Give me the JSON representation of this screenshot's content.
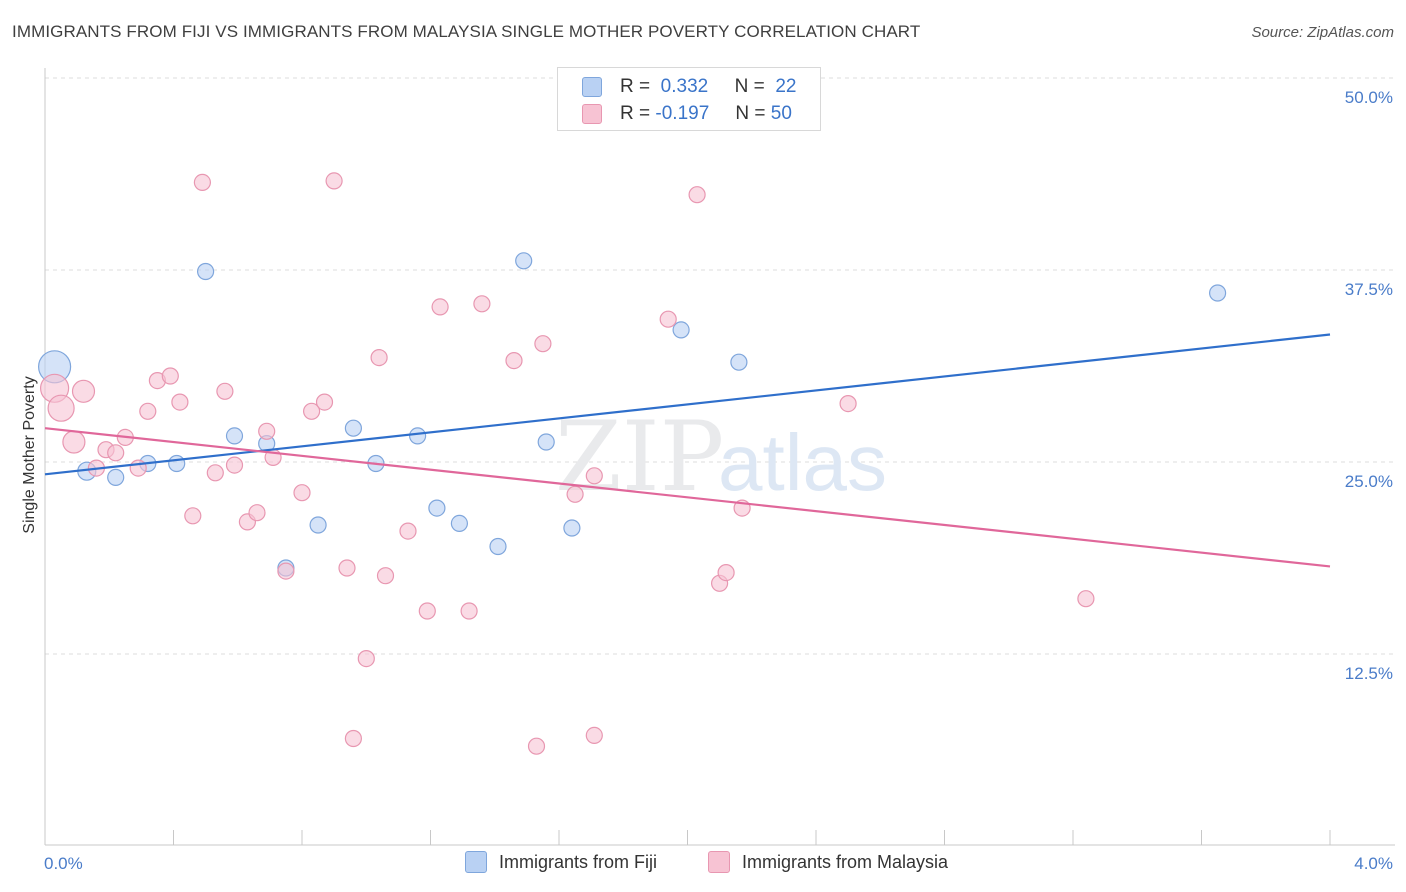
{
  "header": {
    "title": "IMMIGRANTS FROM FIJI VS IMMIGRANTS FROM MALAYSIA SINGLE MOTHER POVERTY CORRELATION CHART",
    "source": "Source: ZipAtlas.com"
  },
  "legend": {
    "fiji": {
      "r_label": "R =",
      "r_value": "0.332",
      "n_label": "N =",
      "n_value": "22"
    },
    "malaysia": {
      "r_label": "R =",
      "r_value": "-0.197",
      "n_label": "N =",
      "n_value": "50"
    }
  },
  "bottom_legend": {
    "fiji": "Immigrants from Fiji",
    "malaysia": "Immigrants from Malaysia"
  },
  "watermark": {
    "zip": "ZIP",
    "atlas": "atlas"
  },
  "colors": {
    "fiji_fill": "#b9d1f3",
    "fiji_stroke": "#7fa6dc",
    "fiji_line": "#2f6fcb",
    "malaysia_fill": "#f7c3d3",
    "malaysia_stroke": "#e897b1",
    "malaysia_line": "#e0679a",
    "tick_text": "#4a7cc9",
    "grid": "#dddddd"
  },
  "chart_data": {
    "type": "scatter",
    "title": "IMMIGRANTS FROM FIJI VS IMMIGRANTS FROM MALAYSIA SINGLE MOTHER POVERTY CORRELATION CHART",
    "ylabel": "Single Mother Poverty",
    "xlim": [
      0,
      4.0
    ],
    "ylim": [
      2.5,
      52
    ],
    "x_tick_labels": [
      "0.0%",
      "4.0%"
    ],
    "y_ticks": [
      12.5,
      25.0,
      37.5,
      50.0
    ],
    "y_tick_labels": [
      "12.5%",
      "25.0%",
      "37.5%",
      "50.0%"
    ],
    "grid": "horizontal dashed",
    "legend_position": "top-center",
    "series": [
      {
        "name": "Immigrants from Fiji",
        "r": 0.332,
        "n": 22,
        "trend": [
          [
            0.0,
            24.2
          ],
          [
            4.0,
            33.3
          ]
        ],
        "points": [
          [
            0.03,
            31.2,
            16
          ],
          [
            0.13,
            24.4,
            9
          ],
          [
            0.22,
            24.0,
            8
          ],
          [
            0.32,
            24.9,
            8
          ],
          [
            0.41,
            24.9,
            8
          ],
          [
            0.5,
            37.4,
            8
          ],
          [
            0.59,
            26.7,
            8
          ],
          [
            0.69,
            26.2,
            8
          ],
          [
            0.75,
            18.1,
            8
          ],
          [
            0.85,
            20.9,
            8
          ],
          [
            0.96,
            27.2,
            8
          ],
          [
            1.03,
            24.9,
            8
          ],
          [
            1.16,
            26.7,
            8
          ],
          [
            1.22,
            22.0,
            8
          ],
          [
            1.29,
            21.0,
            8
          ],
          [
            1.41,
            19.5,
            8
          ],
          [
            1.49,
            38.1,
            8
          ],
          [
            1.56,
            26.3,
            8
          ],
          [
            1.64,
            20.7,
            8
          ],
          [
            1.98,
            33.6,
            8
          ],
          [
            2.16,
            31.5,
            8
          ],
          [
            3.65,
            36.0,
            8
          ]
        ]
      },
      {
        "name": "Immigrants from Malaysia",
        "r": -0.197,
        "n": 50,
        "trend": [
          [
            0.0,
            27.2
          ],
          [
            4.0,
            18.2
          ]
        ],
        "points": [
          [
            0.03,
            29.8,
            14
          ],
          [
            0.05,
            28.5,
            13
          ],
          [
            0.09,
            26.3,
            11
          ],
          [
            0.12,
            29.6,
            11
          ],
          [
            0.16,
            24.6,
            8
          ],
          [
            0.19,
            25.8,
            8
          ],
          [
            0.22,
            25.6,
            8
          ],
          [
            0.25,
            26.6,
            8
          ],
          [
            0.29,
            24.6,
            8
          ],
          [
            0.32,
            28.3,
            8
          ],
          [
            0.35,
            30.3,
            8
          ],
          [
            0.39,
            30.6,
            8
          ],
          [
            0.42,
            28.9,
            8
          ],
          [
            0.46,
            21.5,
            8
          ],
          [
            0.49,
            43.2,
            8
          ],
          [
            0.53,
            24.3,
            8
          ],
          [
            0.56,
            29.6,
            8
          ],
          [
            0.59,
            24.8,
            8
          ],
          [
            0.63,
            21.1,
            8
          ],
          [
            0.66,
            21.7,
            8
          ],
          [
            0.69,
            27.0,
            8
          ],
          [
            0.71,
            25.3,
            8
          ],
          [
            0.75,
            17.9,
            8
          ],
          [
            0.8,
            23.0,
            8
          ],
          [
            0.83,
            28.3,
            8
          ],
          [
            0.87,
            28.9,
            8
          ],
          [
            0.9,
            43.3,
            8
          ],
          [
            0.94,
            18.1,
            8
          ],
          [
            1.0,
            12.2,
            8
          ],
          [
            1.04,
            31.8,
            8
          ],
          [
            1.06,
            17.6,
            8
          ],
          [
            1.13,
            20.5,
            8
          ],
          [
            1.19,
            15.3,
            8
          ],
          [
            1.23,
            35.1,
            8
          ],
          [
            1.32,
            15.3,
            8
          ],
          [
            1.36,
            35.3,
            8
          ],
          [
            1.46,
            31.6,
            8
          ],
          [
            1.53,
            6.5,
            8
          ],
          [
            1.55,
            32.7,
            8
          ],
          [
            1.65,
            22.9,
            8
          ],
          [
            1.71,
            24.1,
            8
          ],
          [
            1.71,
            7.2,
            8
          ],
          [
            0.96,
            7.0,
            8
          ],
          [
            1.94,
            34.3,
            8
          ],
          [
            2.03,
            42.4,
            8
          ],
          [
            2.1,
            17.1,
            8
          ],
          [
            2.12,
            17.8,
            8
          ],
          [
            2.17,
            22.0,
            8
          ],
          [
            2.5,
            28.8,
            8
          ],
          [
            3.24,
            16.1,
            8
          ]
        ]
      }
    ]
  }
}
